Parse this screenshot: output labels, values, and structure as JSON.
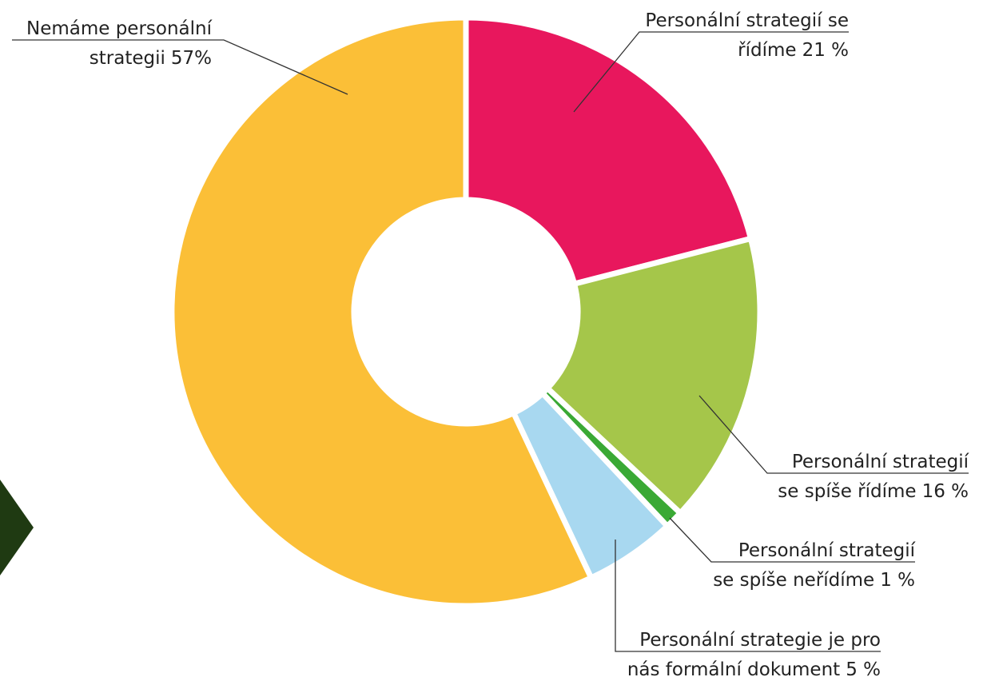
{
  "chart_data": {
    "type": "donut",
    "categories": [
      [
        "Personální strategií se",
        "řídíme"
      ],
      [
        "Personální strategií",
        "se  spíše řídíme"
      ],
      [
        "Personální strategií",
        "se spíše neřídíme"
      ],
      [
        "Personální strategie je pro",
        "nás formální dokument"
      ],
      [
        "Nemáme personální",
        "strategii"
      ]
    ],
    "values": [
      21,
      16,
      1,
      5,
      57
    ],
    "value_labels": [
      "21 %",
      "16 %",
      "1 %",
      "5 %",
      "57%"
    ],
    "colors": [
      "#e8175d",
      "#a5c64a",
      "#3aa935",
      "#a8d8f0",
      "#fbbf37"
    ]
  }
}
